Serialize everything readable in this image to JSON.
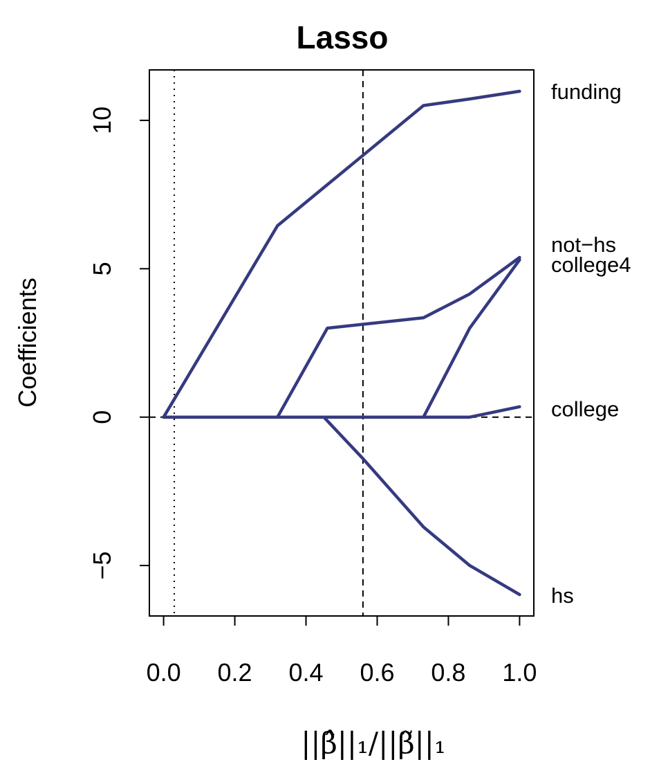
{
  "chart_data": {
    "type": "line",
    "title": "Lasso",
    "xlabel": "||β̂||₁/||β̃||₁",
    "ylabel": "Coefficients",
    "xlim": [
      -0.04,
      1.04
    ],
    "ylim": [
      -6.7,
      11.7
    ],
    "xticks": [
      0.0,
      0.2,
      0.4,
      0.6,
      0.8,
      1.0
    ],
    "xtick_labels": [
      "0.0",
      "0.2",
      "0.4",
      "0.6",
      "0.8",
      "1.0"
    ],
    "yticks": [
      -5,
      0,
      5,
      10
    ],
    "ytick_labels": [
      "−5",
      "0",
      "5",
      "10"
    ],
    "line_color": "#353a80",
    "zero_line": {
      "y": 0,
      "style": "dashed"
    },
    "vlines": [
      {
        "x": 0.03,
        "style": "dotted"
      },
      {
        "x": 0.56,
        "style": "dashed"
      }
    ],
    "series": [
      {
        "name": "funding",
        "x": [
          0.0,
          0.32,
          0.73,
          0.86,
          1.0
        ],
        "y": [
          0.0,
          6.45,
          10.5,
          10.72,
          10.98
        ],
        "label_y": 10.98
      },
      {
        "name": "not−hs",
        "x": [
          0.0,
          0.32,
          0.46,
          0.73,
          0.86,
          1.0
        ],
        "y": [
          0.0,
          0.0,
          3.0,
          3.35,
          4.15,
          5.38
        ],
        "label_y": 5.82
      },
      {
        "name": "college4",
        "x": [
          0.0,
          0.73,
          0.86,
          1.0
        ],
        "y": [
          0.0,
          0.0,
          3.0,
          5.3
        ],
        "label_y": 5.15
      },
      {
        "name": "college",
        "x": [
          0.0,
          0.86,
          1.0
        ],
        "y": [
          0.0,
          0.0,
          0.35
        ],
        "label_y": 0.28
      },
      {
        "name": "hs",
        "x": [
          0.0,
          0.45,
          0.56,
          0.73,
          0.86,
          1.0
        ],
        "y": [
          0.0,
          0.0,
          -1.4,
          -3.7,
          -5.0,
          -5.98
        ],
        "label_y": -6.0
      }
    ]
  }
}
